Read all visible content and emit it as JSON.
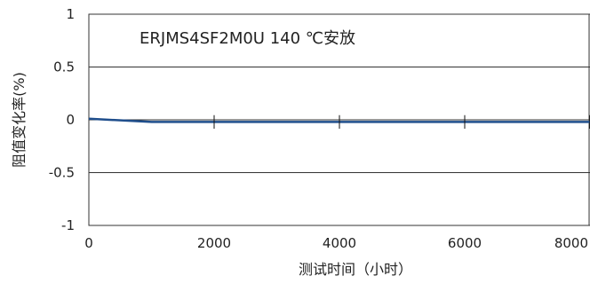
{
  "chart_data": {
    "type": "line",
    "title": "ERJMS4SF2M0U 140 ℃安放",
    "xlabel": "测试时间（小时）",
    "ylabel": "阻值变化率(%)",
    "xlim": [
      0,
      8000
    ],
    "ylim": [
      -1,
      1
    ],
    "x_ticks": [
      0,
      2000,
      4000,
      6000,
      8000
    ],
    "x_tick_labels": [
      "0",
      "2000",
      "4000",
      "6000",
      "8000"
    ],
    "y_ticks": [
      1,
      0.5,
      0,
      -0.5,
      -1
    ],
    "y_tick_labels": [
      "1",
      "0.5",
      "0",
      "-0.5",
      "-1"
    ],
    "grid": "horizontal",
    "series": [
      {
        "color": "#1f4e8c",
        "x": [
          0,
          1000,
          2000,
          4000,
          6000,
          8000
        ],
        "y": [
          0.01,
          -0.02,
          -0.02,
          -0.02,
          -0.02,
          -0.02
        ],
        "error_bars": [
          0.03,
          0.03,
          0.03,
          0.03,
          0.03,
          0.03
        ]
      }
    ]
  }
}
